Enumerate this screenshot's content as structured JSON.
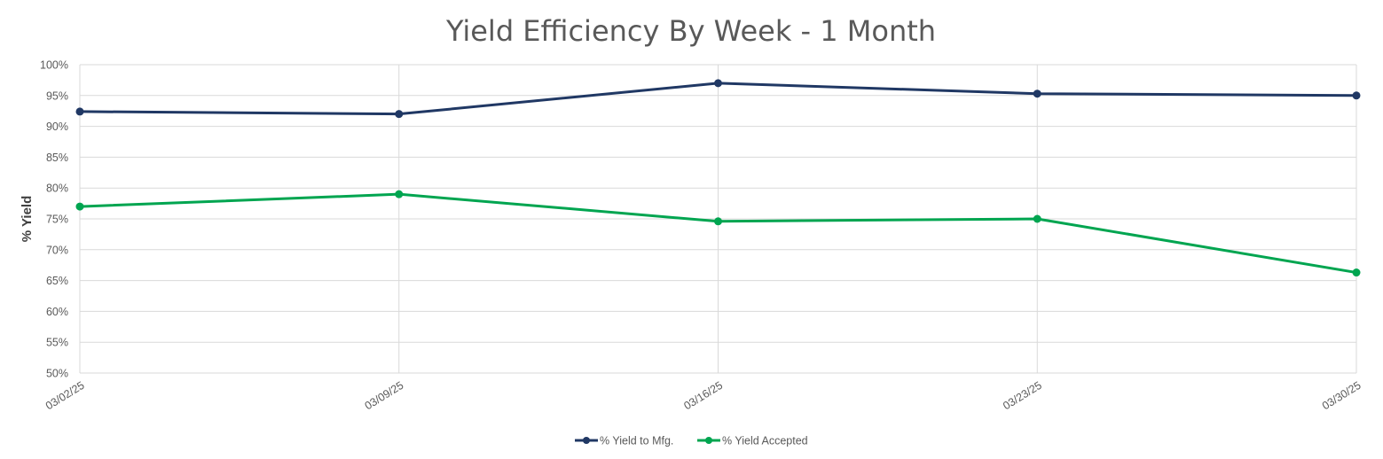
{
  "chart_data": {
    "type": "line",
    "title": "Yield Efficiency By Week - 1 Month",
    "ylabel": "% Yield",
    "xlabel": "",
    "categories": [
      "03/02/25",
      "03/09/25",
      "03/16/25",
      "03/23/25",
      "03/30/25"
    ],
    "ylim": [
      50,
      100
    ],
    "ytick_step": 5,
    "ytick_labels": [
      "50%",
      "55%",
      "60%",
      "65%",
      "70%",
      "75%",
      "80%",
      "85%",
      "90%",
      "95%",
      "100%"
    ],
    "grid": true,
    "legend_position": "bottom",
    "series": [
      {
        "name": "% Yield to Mfg.",
        "color": "#203864",
        "values": [
          92.4,
          92.0,
          97.0,
          95.3,
          95.0
        ]
      },
      {
        "name": "% Yield Accepted",
        "color": "#00A550",
        "values": [
          77.0,
          79.0,
          74.6,
          75.0,
          66.3
        ]
      }
    ]
  }
}
